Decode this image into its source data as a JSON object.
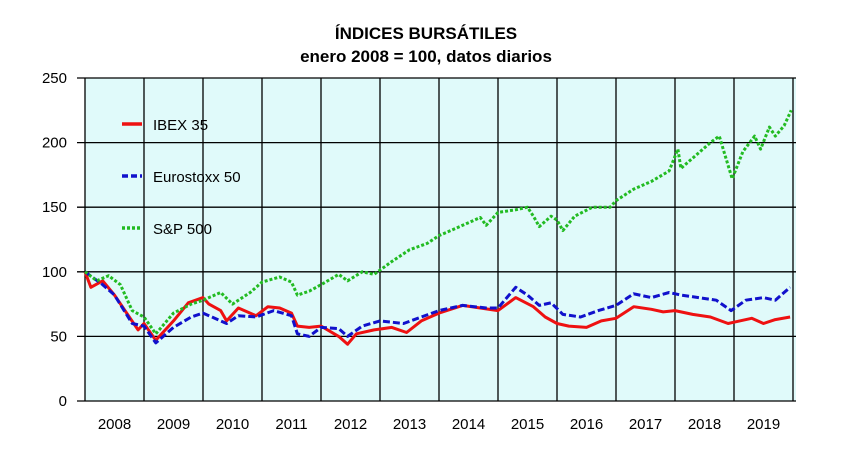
{
  "chart_data": {
    "type": "line",
    "title": "ÍNDICES BURSÁTILES",
    "subtitle": "enero 2008 = 100, datos diarios",
    "xlabel": "",
    "ylabel": "",
    "xlim": [
      2008,
      2020
    ],
    "ylim": [
      0,
      250
    ],
    "y_ticks": [
      0,
      50,
      100,
      150,
      200,
      250
    ],
    "x_tick_labels": [
      "2008",
      "2009",
      "2010",
      "2011",
      "2012",
      "2013",
      "2014",
      "2015",
      "2016",
      "2017",
      "2018",
      "2019"
    ],
    "grid": true,
    "legend_position": "top-left",
    "colors": {
      "background": "#e0fafa",
      "ibex": "#ee1111",
      "euro": "#1111cc",
      "sp": "#22bb22"
    },
    "series": [
      {
        "name": "IBEX 35",
        "key": "ibex",
        "style": "solid",
        "x": [
          2008.0,
          2008.1,
          2008.3,
          2008.5,
          2008.75,
          2008.9,
          2009.0,
          2009.2,
          2009.5,
          2009.75,
          2010.0,
          2010.1,
          2010.3,
          2010.4,
          2010.6,
          2010.9,
          2011.1,
          2011.3,
          2011.5,
          2011.6,
          2011.8,
          2012.0,
          2012.3,
          2012.45,
          2012.6,
          2012.9,
          2013.2,
          2013.45,
          2013.7,
          2014.0,
          2014.4,
          2014.7,
          2015.0,
          2015.3,
          2015.6,
          2015.8,
          2016.0,
          2016.2,
          2016.5,
          2016.75,
          2017.0,
          2017.3,
          2017.6,
          2017.8,
          2018.0,
          2018.3,
          2018.6,
          2018.9,
          2019.0,
          2019.3,
          2019.5,
          2019.7,
          2019.95
        ],
        "y": [
          100,
          88,
          93,
          82,
          65,
          55,
          60,
          47,
          62,
          76,
          80,
          75,
          70,
          62,
          72,
          66,
          73,
          72,
          68,
          58,
          57,
          58,
          50,
          44,
          52,
          55,
          57,
          53,
          62,
          68,
          74,
          72,
          70,
          80,
          73,
          65,
          60,
          58,
          57,
          62,
          64,
          73,
          71,
          69,
          70,
          67,
          65,
          60,
          61,
          64,
          60,
          63,
          65
        ]
      },
      {
        "name": "Eurostoxx 50",
        "key": "euro",
        "style": "dashed",
        "x": [
          2008.0,
          2008.3,
          2008.5,
          2008.8,
          2009.0,
          2009.2,
          2009.5,
          2009.8,
          2010.0,
          2010.4,
          2010.6,
          2010.9,
          2011.2,
          2011.5,
          2011.6,
          2011.8,
          2012.0,
          2012.3,
          2012.45,
          2012.7,
          2013.0,
          2013.4,
          2013.7,
          2014.0,
          2014.4,
          2014.8,
          2015.0,
          2015.3,
          2015.5,
          2015.7,
          2015.9,
          2016.1,
          2016.4,
          2016.7,
          2017.0,
          2017.3,
          2017.6,
          2017.9,
          2018.1,
          2018.4,
          2018.7,
          2018.95,
          2019.2,
          2019.5,
          2019.7,
          2019.95
        ],
        "y": [
          100,
          90,
          82,
          60,
          58,
          45,
          57,
          65,
          68,
          60,
          66,
          65,
          70,
          66,
          52,
          50,
          57,
          56,
          50,
          58,
          62,
          60,
          65,
          70,
          74,
          72,
          72,
          88,
          82,
          74,
          76,
          67,
          65,
          70,
          74,
          83,
          80,
          84,
          82,
          80,
          78,
          70,
          78,
          80,
          78,
          88
        ]
      },
      {
        "name": "S&P 500",
        "key": "sp",
        "style": "dotted",
        "x": [
          2008.0,
          2008.2,
          2008.4,
          2008.6,
          2008.8,
          2009.0,
          2009.2,
          2009.5,
          2009.8,
          2010.0,
          2010.3,
          2010.5,
          2010.8,
          2011.0,
          2011.3,
          2011.5,
          2011.6,
          2011.8,
          2012.0,
          2012.3,
          2012.45,
          2012.7,
          2012.9,
          2013.2,
          2013.5,
          2013.8,
          2014.0,
          2014.2,
          2014.5,
          2014.7,
          2014.8,
          2015.0,
          2015.3,
          2015.5,
          2015.6,
          2015.7,
          2015.9,
          2016.0,
          2016.1,
          2016.3,
          2016.6,
          2016.9,
          2017.0,
          2017.3,
          2017.6,
          2017.9,
          2018.05,
          2018.1,
          2018.3,
          2018.6,
          2018.75,
          2018.85,
          2018.97,
          2019.15,
          2019.35,
          2019.45,
          2019.6,
          2019.7,
          2019.85,
          2019.97
        ],
        "y": [
          100,
          93,
          97,
          90,
          70,
          65,
          52,
          68,
          75,
          78,
          84,
          75,
          84,
          92,
          96,
          92,
          82,
          85,
          90,
          98,
          93,
          100,
          98,
          108,
          117,
          122,
          128,
          132,
          138,
          142,
          136,
          146,
          148,
          150,
          143,
          135,
          143,
          140,
          132,
          143,
          150,
          150,
          155,
          164,
          170,
          178,
          195,
          180,
          188,
          200,
          205,
          190,
          172,
          193,
          205,
          195,
          212,
          205,
          213,
          225
        ]
      }
    ]
  }
}
